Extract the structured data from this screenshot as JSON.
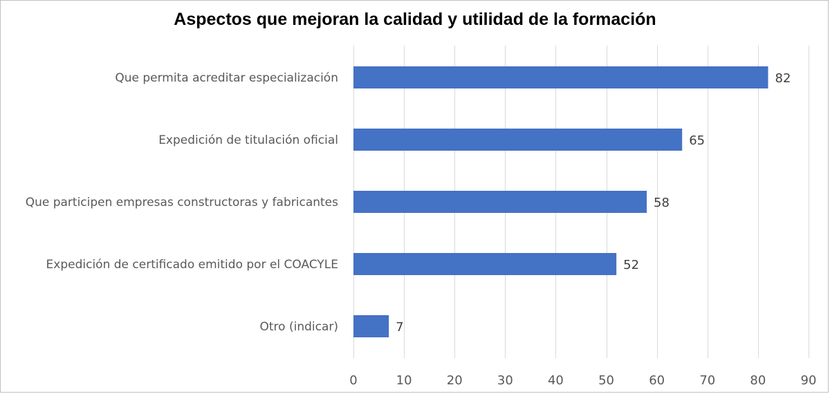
{
  "chart_data": {
    "type": "bar",
    "orientation": "horizontal",
    "title": "Aspectos que mejoran la calidad y utilidad de la formación",
    "categories": [
      "Que permita acreditar especialización",
      "Expedición de titulación oficial",
      "Que participen empresas constructoras y fabricantes",
      "Expedición de certificado emitido por el COACYLE",
      "Otro (indicar)"
    ],
    "values": [
      82,
      65,
      58,
      52,
      7
    ],
    "xlim": [
      0,
      90
    ],
    "xticks": [
      0,
      10,
      20,
      30,
      40,
      50,
      60,
      70,
      80,
      90
    ],
    "grid": "vertical",
    "legend": "none",
    "data_labels": true,
    "bar_color": "#4472C4",
    "grid_color": "#d9d9d9"
  }
}
